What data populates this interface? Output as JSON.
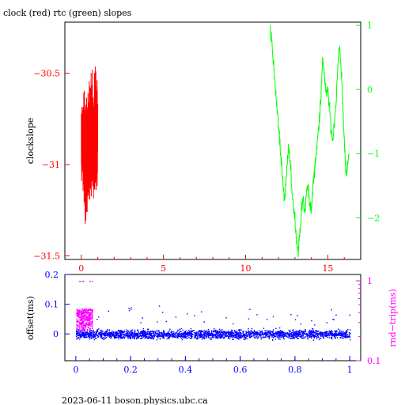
{
  "title": "clock (red) rtc (green) slopes",
  "footer": "2023-06-11 boson.physics.ubc.ca",
  "colors": {
    "red": "#ff0000",
    "green": "#00ff00",
    "blue": "#0000ff",
    "magenta": "#ff00ff",
    "black": "#000000"
  },
  "chart_data": [
    {
      "type": "line",
      "title": "clock (red) rtc (green) slopes",
      "ylabel": "clockslope",
      "xlim": [
        -1,
        17
      ],
      "ylim": [
        -31.52,
        -30.22
      ],
      "x_ticks": [
        {
          "value": 0,
          "label": "0"
        },
        {
          "value": 5,
          "label": "5"
        },
        {
          "value": 10,
          "label": "10"
        },
        {
          "value": 15,
          "label": "15"
        }
      ],
      "y_ticks": [
        {
          "value": -30.5,
          "label": "−30.5"
        },
        {
          "value": -31,
          "label": "−31"
        },
        {
          "value": -31.5,
          "label": "−31.5"
        }
      ],
      "right_axis": {
        "ylim": [
          -2.65,
          1.05
        ],
        "ticks": [
          {
            "value": 1,
            "label": "1"
          },
          {
            "value": 0,
            "label": "0"
          },
          {
            "value": -1,
            "label": "−1"
          },
          {
            "value": -2,
            "label": "−2"
          }
        ]
      },
      "series": [
        {
          "color": "#ff0000",
          "axis": "left",
          "x_range": [
            0.0,
            1.0
          ],
          "band": [
            {
              "x": 0.0,
              "lo": -31.15,
              "hi": -30.62
            },
            {
              "x": 0.2,
              "lo": -31.45,
              "hi": -30.45
            },
            {
              "x": 0.4,
              "lo": -31.32,
              "hi": -30.5
            },
            {
              "x": 0.6,
              "lo": -31.3,
              "hi": -30.4
            },
            {
              "x": 0.8,
              "lo": -31.28,
              "hi": -30.35
            },
            {
              "x": 1.0,
              "lo": -31.2,
              "hi": -30.4
            }
          ]
        },
        {
          "color": "#00ff00",
          "axis": "right",
          "points": [
            [
              11.5,
              0.9
            ],
            [
              11.6,
              0.75
            ],
            [
              11.8,
              0.1
            ],
            [
              11.9,
              -0.3
            ],
            [
              12.0,
              -0.55
            ],
            [
              12.1,
              -0.9
            ],
            [
              12.2,
              -1.2
            ],
            [
              12.3,
              -1.6
            ],
            [
              12.4,
              -1.7
            ],
            [
              12.5,
              -1.3
            ],
            [
              12.6,
              -0.9
            ],
            [
              12.7,
              -1.1
            ],
            [
              12.8,
              -1.5
            ],
            [
              12.9,
              -1.8
            ],
            [
              13.0,
              -2.0
            ],
            [
              13.1,
              -2.35
            ],
            [
              13.2,
              -2.55
            ],
            [
              13.3,
              -2.2
            ],
            [
              13.4,
              -1.9
            ],
            [
              13.5,
              -1.7
            ],
            [
              13.6,
              -1.95
            ],
            [
              13.7,
              -1.6
            ],
            [
              13.8,
              -1.5
            ],
            [
              13.9,
              -1.8
            ],
            [
              14.0,
              -1.9
            ],
            [
              14.1,
              -1.5
            ],
            [
              14.2,
              -1.2
            ],
            [
              14.3,
              -1.0
            ],
            [
              14.4,
              -0.7
            ],
            [
              14.5,
              -0.4
            ],
            [
              14.6,
              0.0
            ],
            [
              14.7,
              0.5
            ],
            [
              14.8,
              0.2
            ],
            [
              14.9,
              -0.1
            ],
            [
              15.0,
              0.0
            ],
            [
              15.1,
              -0.3
            ],
            [
              15.2,
              -0.6
            ],
            [
              15.3,
              -0.8
            ],
            [
              15.4,
              -0.5
            ],
            [
              15.5,
              -0.2
            ],
            [
              15.6,
              0.3
            ],
            [
              15.7,
              0.7
            ],
            [
              15.8,
              0.4
            ],
            [
              15.9,
              -0.2
            ],
            [
              16.0,
              -0.8
            ],
            [
              16.1,
              -1.3
            ],
            [
              16.2,
              -1.2
            ],
            [
              16.3,
              -1.0
            ]
          ]
        }
      ]
    },
    {
      "type": "scatter",
      "ylabel": "offset(ms)",
      "right_ylabel": "rnd−trip(ms)",
      "xlim": [
        -0.04,
        1.04
      ],
      "ylim": [
        -0.09,
        0.2
      ],
      "right_axis": {
        "scale": "log",
        "ylim": [
          0.1,
          1.2
        ],
        "ticks": [
          {
            "value": 1,
            "label": "1"
          },
          {
            "value": 0.1,
            "label": "0.1"
          }
        ]
      },
      "x_ticks": [
        {
          "value": 0,
          "label": "0"
        },
        {
          "value": 0.2,
          "label": "0.2"
        },
        {
          "value": 0.4,
          "label": "0.4"
        },
        {
          "value": 0.6,
          "label": "0.6"
        },
        {
          "value": 0.8,
          "label": "0.8"
        },
        {
          "value": 1,
          "label": "1"
        }
      ],
      "y_ticks": [
        {
          "value": 0.2,
          "label": "0.2"
        },
        {
          "value": 0.1,
          "label": "0.1"
        },
        {
          "value": 0,
          "label": "0"
        }
      ],
      "series": [
        {
          "color": "#0000ff",
          "x_range": [
            0.0,
            1.0
          ],
          "y_center": 0.0,
          "y_spread": 0.025
        },
        {
          "color": "#ff00ff",
          "axis": "right",
          "x_range": [
            0.0,
            0.06
          ],
          "y_center": 0.32,
          "y_spread_low": 0.24,
          "y_spread_high": 0.45
        }
      ]
    }
  ]
}
